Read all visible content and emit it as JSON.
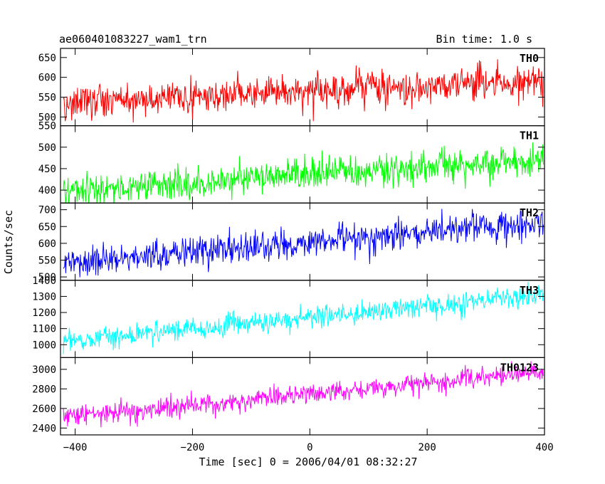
{
  "chart_data": {
    "type": "line",
    "title": "ae060401083227_wam1_trn",
    "subtitle": "Bin time: 1.0 s",
    "xlabel": "Time [sec] 0 = 2006/04/01 08:32:27",
    "ylabel": "Counts/sec",
    "xlim": [
      -425,
      400
    ],
    "x_ticks": [
      -400,
      -200,
      0,
      200,
      400
    ],
    "x_tick_labels": [
      "−400",
      "−200",
      "0",
      "200",
      "400"
    ],
    "x_bin_step": 1.0,
    "panels": [
      {
        "name": "TH0",
        "color": "#ff0000",
        "ylim": [
          478,
          673
        ],
        "y_ticks": [
          500,
          550,
          600,
          650
        ],
        "y_tick_labels": [
          "500",
          "550",
          "600",
          "650"
        ],
        "trend_start": 537,
        "trend_end": 592,
        "noise_sd": 22
      },
      {
        "name": "TH1",
        "color": "#00ff00",
        "ylim": [
          370,
          550
        ],
        "y_ticks": [
          400,
          450,
          500,
          550
        ],
        "y_tick_labels": [
          "400",
          "450",
          "500",
          "550"
        ],
        "trend_start": 400,
        "trend_end": 472,
        "noise_sd": 19
      },
      {
        "name": "TH2",
        "color": "#0000ff",
        "ylim": [
          490,
          720
        ],
        "y_ticks": [
          500,
          550,
          600,
          650,
          700
        ],
        "y_tick_labels": [
          "500",
          "550",
          "600",
          "650",
          "700"
        ],
        "trend_start": 540,
        "trend_end": 665,
        "noise_sd": 24
      },
      {
        "name": "TH3",
        "color": "#00ffff",
        "ylim": [
          920,
          1400
        ],
        "y_ticks": [
          1000,
          1100,
          1200,
          1300,
          1400
        ],
        "y_tick_labels": [
          "1000",
          "1100",
          "1200",
          "1300",
          "1400"
        ],
        "trend_start": 1020,
        "trend_end": 1310,
        "noise_sd": 33
      },
      {
        "name": "TH0123",
        "color": "#ff00ff",
        "ylim": [
          2330,
          3120
        ],
        "y_ticks": [
          2400,
          2600,
          2800,
          3000
        ],
        "y_tick_labels": [
          "2400",
          "2600",
          "2800",
          "3000"
        ],
        "trend_start": 2510,
        "trend_end": 2980,
        "noise_sd": 52
      }
    ]
  }
}
